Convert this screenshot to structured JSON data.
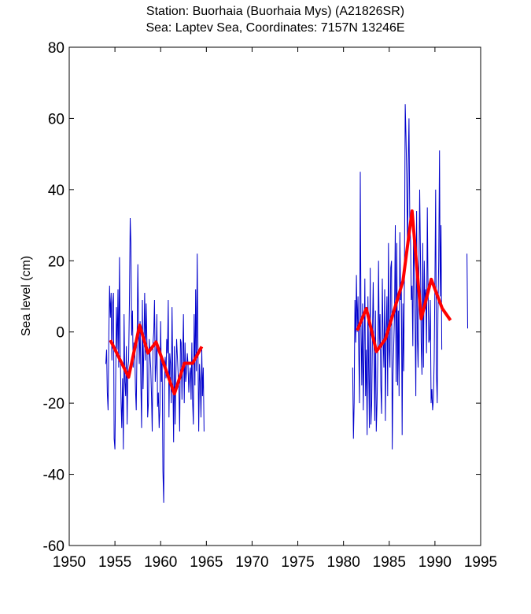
{
  "chart_data": {
    "type": "line",
    "title": "Station: Buorhaia (Buorhaia Mys)  (A21826SR)",
    "subtitle": "Sea: Laptev Sea, Coordinates: 7157N 13246E",
    "xlabel": "",
    "ylabel": "Sea level (cm)",
    "xlim": [
      1950,
      1995
    ],
    "ylim": [
      -60,
      80
    ],
    "xticks": [
      "1950",
      "1955",
      "1960",
      "1965",
      "1970",
      "1975",
      "1980",
      "1985",
      "1990",
      "1995"
    ],
    "yticks": [
      "-60",
      "-40",
      "-20",
      "0",
      "20",
      "40",
      "60",
      "80"
    ],
    "grid": false,
    "colors": {
      "monthly": "#0000cc",
      "annual": "#ff0000"
    },
    "series": [
      {
        "name": "monthly",
        "segments": [
          {
            "start": 1954.0,
            "step": 0.0833,
            "values": [
              -9,
              -5,
              -17,
              -22,
              0,
              13,
              4,
              11,
              -8,
              8,
              11,
              -30,
              -33,
              -12,
              7,
              -5,
              12,
              -10,
              21,
              -6,
              -20,
              -27,
              -13,
              -33,
              5,
              -14,
              -18,
              -4,
              -26,
              -10,
              -8,
              8,
              32,
              25,
              -1,
              6,
              -10,
              -3,
              -5,
              -16,
              -22,
              -4,
              19,
              2,
              -9,
              3,
              -14,
              -27,
              9,
              -16,
              -4,
              11,
              -8,
              8,
              -3,
              -24,
              -20,
              -2,
              -6,
              -10,
              -18,
              -28,
              -3,
              0,
              9,
              -14,
              -9,
              5,
              -21,
              -17,
              -27,
              -22,
              3,
              -14,
              -8,
              -39,
              -48,
              -16,
              -7,
              -13,
              -2,
              -6,
              9,
              -24,
              -6,
              -9,
              -20,
              7,
              -13,
              -31,
              -4,
              -26,
              -12,
              -2,
              -7,
              -12,
              -16,
              -28,
              -2,
              -3,
              -19,
              -7,
              5,
              -20,
              -3,
              -14,
              -11,
              -6,
              -9,
              -17,
              -12,
              -10,
              -19,
              -3,
              -20,
              -26,
              5,
              -15,
              12,
              -11,
              22,
              -4,
              -28,
              -9,
              -14,
              -24,
              -5,
              -18,
              -10,
              -28
            ]
          },
          {
            "start": 1981.0,
            "step": 0.0833,
            "values": [
              -10,
              -30,
              -20,
              9,
              -3,
              16,
              0,
              10,
              -5,
              -20,
              45,
              3,
              -15,
              8,
              -22,
              -6,
              15,
              -18,
              -5,
              -29,
              10,
              -10,
              -27,
              18,
              -26,
              -20,
              0,
              14,
              -5,
              -25,
              6,
              -28,
              -20,
              -8,
              20,
              -4,
              5,
              -15,
              -23,
              15,
              -2,
              -10,
              12,
              -25,
              0,
              10,
              -18,
              25,
              -5,
              -10,
              18,
              20,
              -33,
              -12,
              -3,
              5,
              30,
              -14,
              25,
              -15,
              6,
              -18,
              28,
              9,
              12,
              -29,
              8,
              -11,
              16,
              64,
              55,
              44,
              22,
              48,
              60,
              32,
              25,
              9,
              13,
              -4,
              28,
              17,
              2,
              -18,
              34,
              -2,
              -10,
              16,
              40,
              21,
              -3,
              -12,
              25,
              -10,
              20,
              7,
              12,
              -6,
              35,
              13,
              -3,
              -2,
              9,
              -20,
              -16,
              -22,
              -19,
              -8,
              12,
              40,
              -12,
              -20,
              5,
              20,
              51,
              10,
              30,
              -5
            ]
          },
          {
            "start": 1993.5,
            "step": 0.0833,
            "values": [
              22,
              1
            ]
          }
        ]
      },
      {
        "name": "annual",
        "segments": [
          {
            "x": [
              1954.5,
              1956.5,
              1957.7,
              1958.6,
              1959.5,
              1961.5,
              1962.6,
              1963.5,
              1964.5
            ],
            "y": [
              -2.3,
              -12.7,
              1.9,
              -5.9,
              -2.8,
              -17.4,
              -8.8,
              -8.8,
              -4.1
            ]
          },
          {
            "x": [
              1981.5,
              1982.5,
              1983.6,
              1984.6,
              1986.5,
              1987.5,
              1988.5,
              1989.6,
              1990.8,
              1991.7
            ],
            "y": [
              0.4,
              6.6,
              -5.5,
              -1.9,
              14.3,
              34.0,
              3.7,
              14.8,
              6.6,
              3.3
            ]
          }
        ]
      }
    ]
  }
}
